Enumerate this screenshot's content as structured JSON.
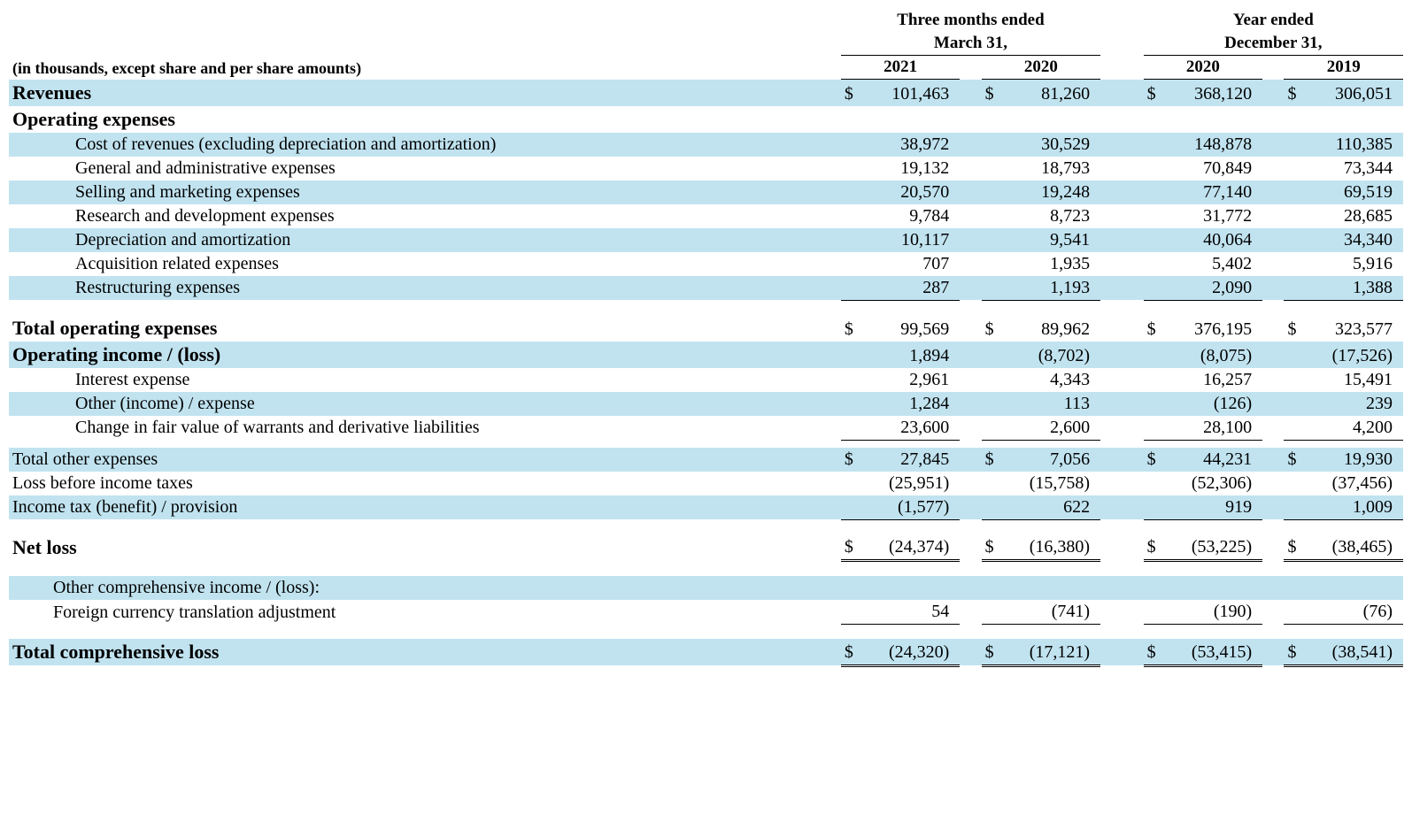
{
  "colors": {
    "row_highlight": "#c1e3f0",
    "text": "#000000",
    "background": "#ffffff"
  },
  "header": {
    "period1": "Three months ended",
    "period1_sub": "March 31,",
    "period2": "Year ended",
    "period2_sub": "December 31,",
    "subtitle": "(in thousands, except share and per share amounts)",
    "years": [
      "2021",
      "2020",
      "2020",
      "2019"
    ]
  },
  "rows": [
    {
      "type": "data",
      "bold": true,
      "shade": true,
      "label": "Revenues",
      "cur": "$",
      "vals": [
        "101,463",
        "81,260",
        "368,120",
        "306,051"
      ]
    },
    {
      "type": "section",
      "bold": true,
      "label": "Operating expenses"
    },
    {
      "type": "data",
      "indent": 1,
      "shade": true,
      "label": "Cost of revenues (excluding depreciation and amortization)",
      "vals": [
        "38,972",
        "30,529",
        "148,878",
        "110,385"
      ]
    },
    {
      "type": "data",
      "indent": 1,
      "label": "General and administrative expenses",
      "vals": [
        "19,132",
        "18,793",
        "70,849",
        "73,344"
      ]
    },
    {
      "type": "data",
      "indent": 1,
      "shade": true,
      "label": "Selling and marketing expenses",
      "vals": [
        "20,570",
        "19,248",
        "77,140",
        "69,519"
      ]
    },
    {
      "type": "data",
      "indent": 1,
      "label": "Research and development expenses",
      "vals": [
        "9,784",
        "8,723",
        "31,772",
        "28,685"
      ]
    },
    {
      "type": "data",
      "indent": 1,
      "shade": true,
      "label": "Depreciation and amortization",
      "vals": [
        "10,117",
        "9,541",
        "40,064",
        "34,340"
      ]
    },
    {
      "type": "data",
      "indent": 1,
      "label": "Acquisition related expenses",
      "vals": [
        "707",
        "1,935",
        "5,402",
        "5,916"
      ]
    },
    {
      "type": "data",
      "indent": 1,
      "shade": true,
      "border": "single",
      "label": "Restructuring expenses",
      "vals": [
        "287",
        "1,193",
        "2,090",
        "1,388"
      ]
    },
    {
      "type": "spacer"
    },
    {
      "type": "data",
      "bold": true,
      "label": "Total operating expenses",
      "cur": "$",
      "vals": [
        "99,569",
        "89,962",
        "376,195",
        "323,577"
      ]
    },
    {
      "type": "data",
      "bold": true,
      "shade": true,
      "label": "Operating income / (loss)",
      "vals": [
        "1,894",
        "(8,702)",
        "(8,075)",
        "(17,526)"
      ]
    },
    {
      "type": "data",
      "indent": 1,
      "label": "Interest expense",
      "vals": [
        "2,961",
        "4,343",
        "16,257",
        "15,491"
      ]
    },
    {
      "type": "data",
      "indent": 1,
      "shade": true,
      "label": "Other (income) / expense",
      "vals": [
        "1,284",
        "113",
        "(126)",
        "239"
      ]
    },
    {
      "type": "data",
      "indent": 1,
      "border": "single",
      "label": "Change in fair value of warrants and derivative liabilities",
      "vals": [
        "23,600",
        "2,600",
        "28,100",
        "4,200"
      ]
    },
    {
      "type": "spacer-small"
    },
    {
      "type": "data",
      "shade": true,
      "label": "Total other expenses",
      "cur": "$",
      "vals": [
        "27,845",
        "7,056",
        "44,231",
        "19,930"
      ]
    },
    {
      "type": "data",
      "label": "Loss before income taxes",
      "vals": [
        "(25,951)",
        "(15,758)",
        "(52,306)",
        "(37,456)"
      ]
    },
    {
      "type": "data",
      "shade": true,
      "border": "single",
      "label": "Income tax (benefit) / provision",
      "vals": [
        "(1,577)",
        "622",
        "919",
        "1,009"
      ]
    },
    {
      "type": "spacer"
    },
    {
      "type": "data",
      "bold": true,
      "border": "double",
      "label": "Net loss",
      "cur": "$",
      "vals": [
        "(24,374)",
        "(16,380)",
        "(53,225)",
        "(38,465)"
      ]
    },
    {
      "type": "spacer"
    },
    {
      "type": "data",
      "indent": "s",
      "shade": true,
      "label": "Other comprehensive income / (loss):",
      "vals": [
        "",
        "",
        "",
        ""
      ]
    },
    {
      "type": "data",
      "indent": "s",
      "border": "single",
      "label": "Foreign currency translation adjustment",
      "vals": [
        "54",
        "(741)",
        "(190)",
        "(76)"
      ]
    },
    {
      "type": "spacer"
    },
    {
      "type": "data",
      "bold": true,
      "shade": true,
      "border": "double",
      "label": "Total comprehensive loss",
      "cur": "$",
      "vals": [
        "(24,320)",
        "(17,121)",
        "(53,415)",
        "(38,541)"
      ]
    }
  ]
}
